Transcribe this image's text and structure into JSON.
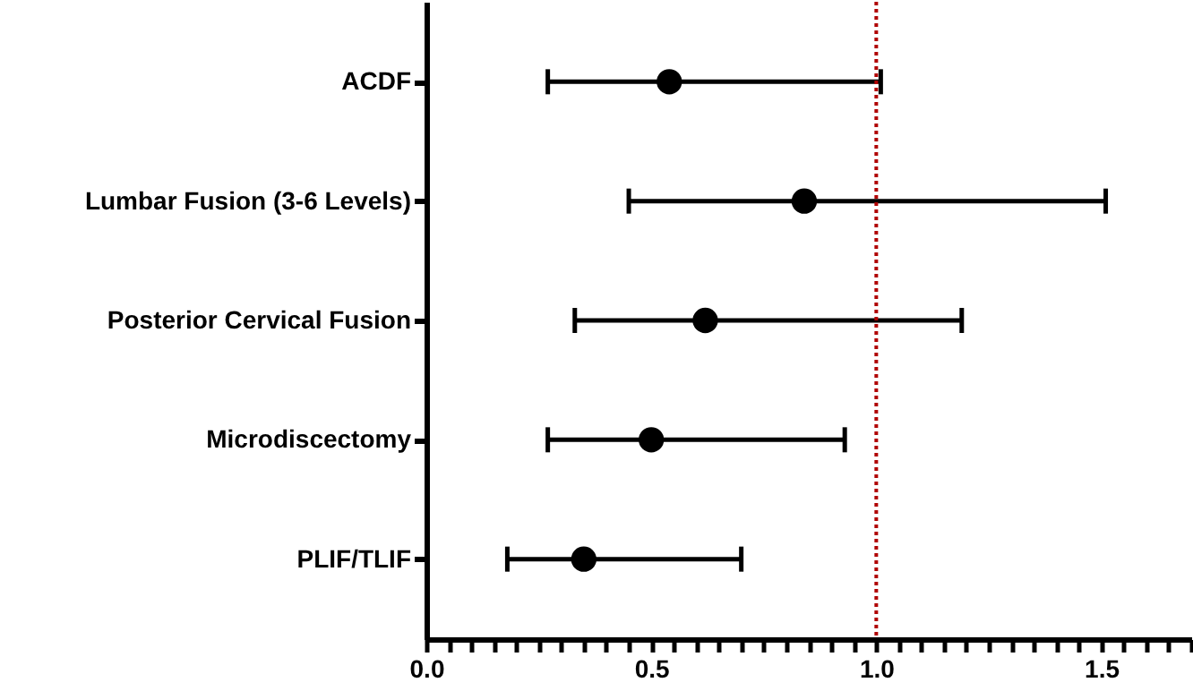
{
  "chart_data": {
    "type": "scatter",
    "orientation": "horizontal",
    "categories": [
      "ACDF",
      "Lumbar Fusion (3-6 Levels)",
      "Posterior Cervical Fusion",
      "Microdiscectomy",
      "PLIF/TLIF"
    ],
    "values": [
      0.54,
      0.84,
      0.62,
      0.5,
      0.35
    ],
    "errors": [
      [
        0.27,
        1.01
      ],
      [
        0.45,
        1.51
      ],
      [
        0.33,
        1.19
      ],
      [
        0.27,
        0.93
      ],
      [
        0.18,
        0.7
      ]
    ],
    "color": "#000000",
    "marker": "circle",
    "xlim": [
      0,
      1.7
    ],
    "xticks": [
      {
        "value": 0,
        "label": "0.0"
      },
      {
        "value": 0.05,
        "label": null
      },
      {
        "value": 0.1,
        "label": null
      },
      {
        "value": 0.15,
        "label": null
      },
      {
        "value": 0.2,
        "label": null
      },
      {
        "value": 0.25,
        "label": null
      },
      {
        "value": 0.3,
        "label": null
      },
      {
        "value": 0.35,
        "label": null
      },
      {
        "value": 0.4,
        "label": null
      },
      {
        "value": 0.45,
        "label": null
      },
      {
        "value": 0.5,
        "label": "0.5"
      },
      {
        "value": 0.55,
        "label": null
      },
      {
        "value": 0.6,
        "label": null
      },
      {
        "value": 0.65,
        "label": null
      },
      {
        "value": 0.7,
        "label": null
      },
      {
        "value": 0.75,
        "label": null
      },
      {
        "value": 0.8,
        "label": null
      },
      {
        "value": 0.85,
        "label": null
      },
      {
        "value": 0.9,
        "label": null
      },
      {
        "value": 0.95,
        "label": null
      },
      {
        "value": 1,
        "label": "1.0"
      },
      {
        "value": 1.05,
        "label": null
      },
      {
        "value": 1.1,
        "label": null
      },
      {
        "value": 1.15,
        "label": null
      },
      {
        "value": 1.2,
        "label": null
      },
      {
        "value": 1.25,
        "label": null
      },
      {
        "value": 1.3,
        "label": null
      },
      {
        "value": 1.35,
        "label": null
      },
      {
        "value": 1.4,
        "label": null
      },
      {
        "value": 1.45,
        "label": null
      },
      {
        "value": 1.5,
        "label": "1.5"
      },
      {
        "value": 1.55,
        "label": null
      },
      {
        "value": 1.6,
        "label": null
      },
      {
        "value": 1.65,
        "label": null
      },
      {
        "value": 1.7,
        "label": null
      }
    ],
    "ref_lines": [
      {
        "axis": "x",
        "value": 1,
        "color": "#b00000",
        "line_style": "dotted"
      }
    ]
  }
}
